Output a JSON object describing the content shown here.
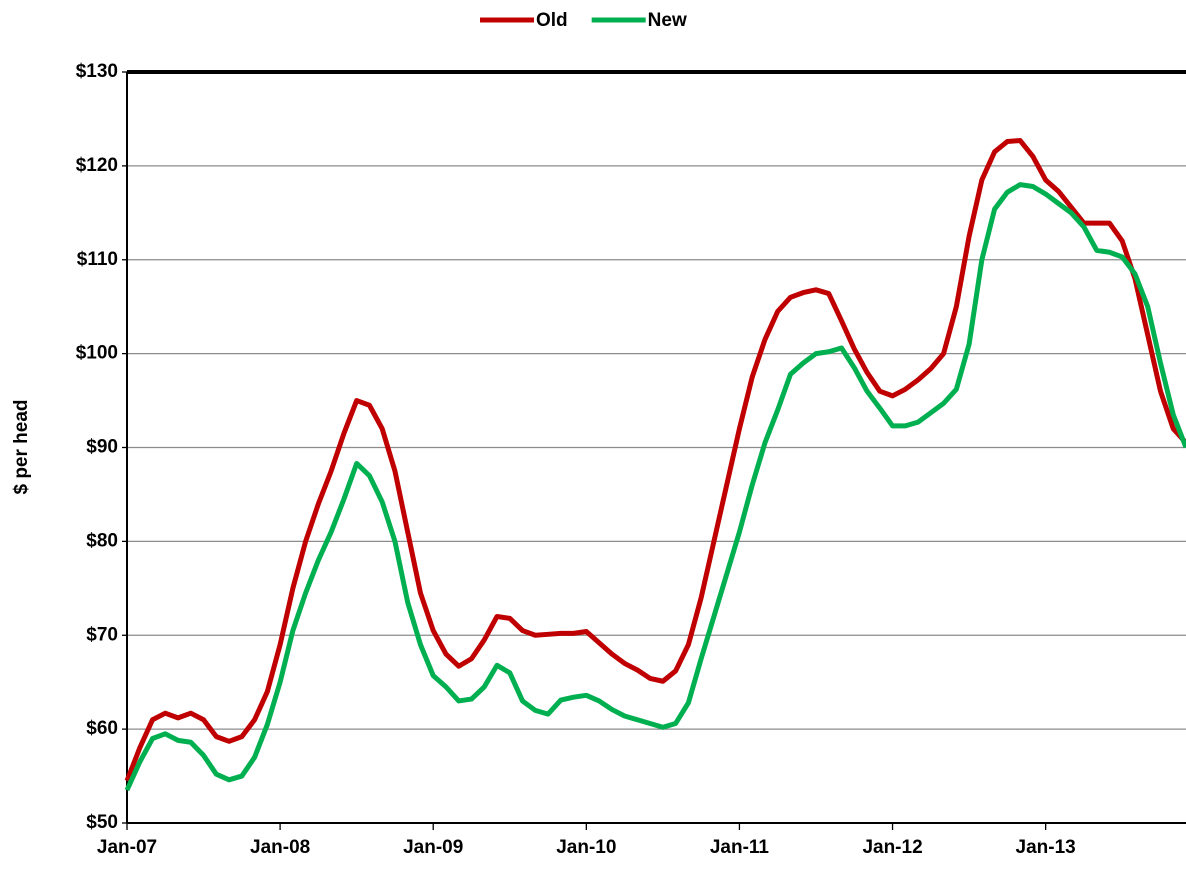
{
  "chart_data": {
    "type": "line",
    "y_label": "$ per head",
    "categories": [
      "Jan-07",
      null,
      null,
      null,
      null,
      null,
      null,
      null,
      null,
      null,
      null,
      null,
      "Jan-08",
      null,
      null,
      null,
      null,
      null,
      null,
      null,
      null,
      null,
      null,
      null,
      "Jan-09",
      null,
      null,
      null,
      null,
      null,
      null,
      null,
      null,
      null,
      null,
      null,
      "Jan-10",
      null,
      null,
      null,
      null,
      null,
      null,
      null,
      null,
      null,
      null,
      null,
      "Jan-11",
      null,
      null,
      null,
      null,
      null,
      null,
      null,
      null,
      null,
      null,
      null,
      "Jan-12",
      null,
      null,
      null,
      null,
      null,
      null,
      null,
      null,
      null,
      null,
      null,
      "Jan-13",
      null,
      null,
      null,
      null,
      null,
      null,
      null,
      null,
      null,
      null,
      null
    ],
    "series": [
      {
        "name": "Old",
        "color": "#c00000",
        "values": [
          54.5,
          58,
          61,
          61.7,
          61.2,
          61.7,
          61,
          59.2,
          58.7,
          59.2,
          61,
          64,
          69,
          75,
          80,
          84,
          87.5,
          91.5,
          95,
          94.5,
          92,
          87.5,
          81,
          74.5,
          70.5,
          68,
          66.7,
          67.5,
          69.5,
          72,
          71.8,
          70.5,
          70,
          70.1,
          70.2,
          70.2,
          70.4,
          69.2,
          68,
          67,
          66.3,
          65.4,
          65.1,
          66.2,
          69,
          74,
          80,
          86,
          92,
          97.5,
          101.5,
          104.5,
          106,
          106.5,
          106.8,
          106.4,
          103.5,
          100.5,
          98,
          96,
          95.5,
          96.2,
          97.2,
          98.4,
          100,
          105,
          112.5,
          118.5,
          121.5,
          122.6,
          122.7,
          121,
          118.5,
          117.3,
          115.6,
          113.9,
          113.9,
          113.9,
          112,
          108,
          102,
          96,
          92,
          90.5
        ]
      },
      {
        "name": "New",
        "color": "#00b050",
        "values": [
          53.5,
          56.5,
          59,
          59.5,
          58.8,
          58.6,
          57.2,
          55.2,
          54.6,
          55,
          57,
          60.5,
          65,
          70.5,
          74.5,
          78,
          81,
          84.5,
          88.3,
          87,
          84.2,
          80,
          73.5,
          69,
          65.7,
          64.5,
          63,
          63.2,
          64.5,
          66.8,
          66,
          63,
          62,
          61.6,
          63.1,
          63.4,
          63.6,
          63,
          62.1,
          61.4,
          61,
          60.6,
          60.2,
          60.6,
          62.8,
          67.5,
          72,
          76.5,
          81,
          86,
          90.5,
          94,
          97.8,
          99,
          100,
          100.2,
          100.6,
          98.5,
          96,
          94.2,
          92.3,
          92.3,
          92.7,
          93.7,
          94.7,
          96.2,
          101,
          110,
          115.4,
          117.2,
          118,
          117.8,
          117,
          116,
          115,
          113.5,
          111,
          110.8,
          110.3,
          108.5,
          105,
          99,
          93.5,
          90
        ]
      }
    ],
    "ylim": [
      50,
      130
    ],
    "yticks": [
      {
        "value": 50,
        "label": "$50"
      },
      {
        "value": 60,
        "label": "$60"
      },
      {
        "value": 70,
        "label": "$70"
      },
      {
        "value": 80,
        "label": "$80"
      },
      {
        "value": 90,
        "label": "$90"
      },
      {
        "value": 100,
        "label": "$100"
      },
      {
        "value": 110,
        "label": "$110"
      },
      {
        "value": 120,
        "label": "$120"
      },
      {
        "value": 130,
        "label": "$130"
      }
    ],
    "grid": true,
    "legend": "top"
  }
}
